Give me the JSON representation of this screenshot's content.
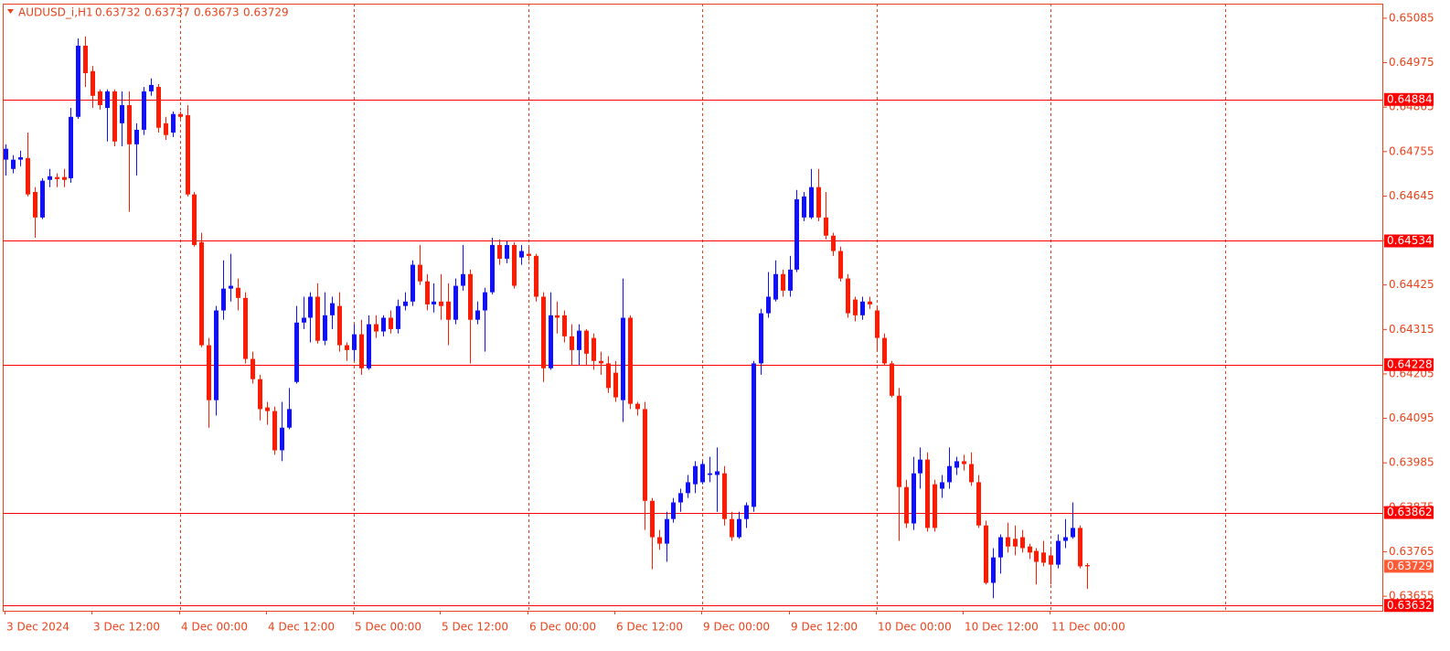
{
  "chart_data": {
    "type": "candlestick",
    "title": "AUDUSD_i,H1",
    "categories": [
      "3 Dec 2024",
      null,
      null,
      null,
      null,
      null,
      null,
      null,
      null,
      null,
      null,
      null,
      "3 Dec 12:00",
      null,
      null,
      null,
      null,
      null,
      null,
      null,
      null,
      null,
      null,
      null,
      "4 Dec 00:00",
      null,
      null,
      null,
      null,
      null,
      null,
      null,
      null,
      null,
      null,
      null,
      "4 Dec 12:00",
      null,
      null,
      null,
      null,
      null,
      null,
      null,
      null,
      null,
      null,
      null,
      "5 Dec 00:00",
      null,
      null,
      null,
      null,
      null,
      null,
      null,
      null,
      null,
      null,
      null,
      "5 Dec 12:00",
      null,
      null,
      null,
      null,
      null,
      null,
      null,
      null,
      null,
      null,
      null,
      "6 Dec 00:00",
      null,
      null,
      null,
      null,
      null,
      null,
      null,
      null,
      null,
      null,
      null,
      "6 Dec 12:00",
      null,
      null,
      null,
      null,
      null,
      null,
      null,
      null,
      null,
      null,
      null,
      "9 Dec 00:00",
      null,
      null,
      null,
      null,
      null,
      null,
      null,
      null,
      null,
      null,
      null,
      "9 Dec 12:00",
      null,
      null,
      null,
      null,
      null,
      null,
      null,
      null,
      null,
      null,
      null,
      "10 Dec 00:00",
      null,
      null,
      null,
      null,
      null,
      null,
      null,
      null,
      null,
      null,
      null,
      "10 Dec 12:00",
      null,
      null,
      null,
      null,
      null,
      null,
      null,
      null,
      null,
      null,
      null,
      "11 Dec 00:00",
      null,
      null,
      null,
      null,
      null
    ],
    "open": [
      0.64735,
      0.64712,
      0.64735,
      0.64739,
      0.64655,
      0.64592,
      0.64685,
      0.64692,
      0.64692,
      0.64689,
      0.64841,
      0.65017,
      0.64954,
      0.64904,
      0.64863,
      0.64904,
      0.64825,
      0.6487,
      0.64773,
      0.64809,
      0.64904,
      0.64915,
      0.64825,
      0.64802,
      0.64848,
      0.64845,
      0.64649,
      0.64531,
      0.64276,
      0.6414,
      0.64362,
      0.64416,
      0.64418,
      0.64393,
      0.64242,
      0.64192,
      0.64122,
      0.64113,
      0.64016,
      0.64072,
      0.64185,
      0.64332,
      0.64344,
      0.64396,
      0.64287,
      0.6435,
      0.64373,
      0.64276,
      0.64264,
      0.64303,
      0.64219,
      0.64328,
      0.6431,
      0.64344,
      0.64316,
      0.64373,
      0.64384,
      0.64475,
      0.64434,
      0.64377,
      0.64384,
      0.64384,
      0.64339,
      0.64423,
      0.64452,
      0.64339,
      0.64362,
      0.64407,
      0.64524,
      0.6449,
      0.64524,
      0.64493,
      0.64502,
      0.64497,
      0.64396,
      0.64219,
      0.6435,
      0.6435,
      0.64298,
      0.64264,
      0.64312,
      0.64294,
      0.64237,
      0.64231,
      0.64208,
      0.6414,
      0.64344,
      0.64131,
      0.64118,
      0.63891,
      0.63801,
      0.63785,
      0.63846,
      0.63887,
      0.6391,
      0.63932,
      0.63937,
      0.63955,
      0.63955,
      0.63959,
      0.63846,
      0.63801,
      0.63846,
      0.63876,
      0.64231,
      0.64355,
      0.64389,
      0.64452,
      0.64411,
      0.64463,
      0.64592,
      0.64592,
      0.64667,
      0.64592,
      0.64547,
      0.64509,
      0.64441,
      0.64389,
      0.6435,
      0.64384,
      0.64362,
      0.64294,
      0.64231,
      0.64151,
      0.63925,
      0.63835,
      0.63959,
      0.63993,
      0.63932,
      0.63921,
      0.63937,
      0.63973,
      0.63989,
      0.63982,
      0.63937,
      0.6383,
      0.63688,
      0.63751,
      0.63801,
      0.63797,
      0.63801,
      0.63778,
      0.63767,
      0.63763,
      0.63756,
      0.63733,
      0.63792,
      0.63801,
      0.63824,
      0.63732
    ],
    "high": [
      0.64773,
      0.64746,
      0.64757,
      0.64802,
      0.64667,
      0.64689,
      0.64712,
      0.64701,
      0.64712,
      0.64863,
      0.65035,
      0.6504,
      0.64967,
      0.64909,
      0.64909,
      0.64909,
      0.64904,
      0.64904,
      0.64825,
      0.64915,
      0.64936,
      0.64922,
      0.64841,
      0.64854,
      0.64854,
      0.6487,
      0.64655,
      0.64554,
      0.64294,
      0.64373,
      0.64486,
      0.64502,
      0.64441,
      0.64407,
      0.6426,
      0.64203,
      0.64136,
      0.64124,
      0.64136,
      0.6417,
      0.64373,
      0.64396,
      0.64407,
      0.64429,
      0.64407,
      0.64396,
      0.64407,
      0.64283,
      0.64328,
      0.64339,
      0.6435,
      0.6435,
      0.6435,
      0.64362,
      0.64389,
      0.64407,
      0.64486,
      0.64524,
      0.64452,
      0.64429,
      0.64452,
      0.64429,
      0.64441,
      0.64524,
      0.64463,
      0.64384,
      0.64418,
      0.64542,
      0.64538,
      0.64533,
      0.64531,
      0.64524,
      0.6452,
      0.64502,
      0.64407,
      0.64407,
      0.64384,
      0.64362,
      0.64328,
      0.64328,
      0.64316,
      0.64305,
      0.6426,
      0.64249,
      0.64237,
      0.64441,
      0.6435,
      0.64136,
      0.64136,
      0.63898,
      0.63819,
      0.63864,
      0.63898,
      0.63921,
      0.63955,
      0.63989,
      0.63989,
      0.64,
      0.64023,
      0.63977,
      0.63864,
      0.63864,
      0.63887,
      0.64237,
      0.64366,
      0.64457,
      0.64486,
      0.64463,
      0.64497,
      0.6466,
      0.64655,
      0.64712,
      0.64712,
      0.64655,
      0.64554,
      0.6452,
      0.64452,
      0.64396,
      0.64396,
      0.64396,
      0.64373,
      0.64305,
      0.64237,
      0.6417,
      0.63943,
      0.64,
      0.64023,
      0.64011,
      0.63943,
      0.63955,
      0.64023,
      0.64,
      0.64005,
      0.64011,
      0.63955,
      0.63842,
      0.63774,
      0.63808,
      0.63837,
      0.6383,
      0.63819,
      0.63785,
      0.63774,
      0.63792,
      0.63774,
      0.63808,
      0.63846,
      0.63887,
      0.6383,
      0.63737
    ],
    "low": [
      0.64696,
      0.64701,
      0.64719,
      0.64644,
      0.64542,
      0.64588,
      0.64667,
      0.64667,
      0.64667,
      0.64678,
      0.64836,
      0.64915,
      0.64863,
      0.64859,
      0.6478,
      0.64768,
      0.64768,
      0.64606,
      0.64696,
      0.64796,
      0.64893,
      0.64802,
      0.64784,
      0.64791,
      0.64836,
      0.64644,
      0.6452,
      0.64271,
      0.64072,
      0.64102,
      0.64339,
      0.64384,
      0.64362,
      0.64231,
      0.64181,
      0.6409,
      0.64079,
      0.64005,
      0.63989,
      0.64068,
      0.64181,
      0.64316,
      0.64283,
      0.6428,
      0.64276,
      0.64316,
      0.6426,
      0.64237,
      0.64237,
      0.64203,
      0.64215,
      0.64294,
      0.64298,
      0.64305,
      0.64305,
      0.64362,
      0.64373,
      0.64425,
      0.64362,
      0.64357,
      0.64339,
      0.64276,
      0.64328,
      0.64411,
      0.64231,
      0.64328,
      0.6426,
      0.64402,
      0.64475,
      0.64479,
      0.64416,
      0.64475,
      0.64486,
      0.64384,
      0.64185,
      0.64215,
      0.64305,
      0.64283,
      0.64226,
      0.64226,
      0.64226,
      0.64215,
      0.64203,
      0.64158,
      0.64136,
      0.64086,
      0.64118,
      0.64102,
      0.63819,
      0.63722,
      0.6377,
      0.6374,
      0.63837,
      0.63864,
      0.63898,
      0.6391,
      0.63932,
      0.63937,
      0.63864,
      0.6383,
      0.63792,
      0.63797,
      0.63824,
      0.63864,
      0.64203,
      0.64344,
      0.64384,
      0.64396,
      0.64396,
      0.64457,
      0.64583,
      0.64588,
      0.64583,
      0.64538,
      0.64497,
      0.64434,
      0.64344,
      0.64335,
      0.64339,
      0.64366,
      0.6426,
      0.64226,
      0.64147,
      0.63792,
      0.63824,
      0.63819,
      0.63921,
      0.63815,
      0.63815,
      0.63898,
      0.63921,
      0.63955,
      0.63966,
      0.63928,
      0.63824,
      0.63684,
      0.6365,
      0.63711,
      0.63763,
      0.63756,
      0.63763,
      0.63747,
      0.63684,
      0.63729,
      0.63684,
      0.63724,
      0.63774,
      0.63797,
      0.63724,
      0.63673
    ],
    "close": [
      0.64762,
      0.64735,
      0.64741,
      0.64649,
      0.64592,
      0.64683,
      0.64694,
      0.64687,
      0.64685,
      0.64841,
      0.65017,
      0.64949,
      0.64893,
      0.6487,
      0.64904,
      0.6478,
      0.6487,
      0.64773,
      0.64809,
      0.64904,
      0.6492,
      0.64814,
      0.64796,
      0.64848,
      0.64841,
      0.64649,
      0.64524,
      0.64276,
      0.6414,
      0.64362,
      0.64416,
      0.64423,
      0.64393,
      0.64242,
      0.64192,
      0.64118,
      0.64113,
      0.64016,
      0.64072,
      0.64118,
      0.64332,
      0.64344,
      0.64396,
      0.64287,
      0.6435,
      0.6438,
      0.64276,
      0.64264,
      0.64303,
      0.64219,
      0.64328,
      0.6431,
      0.64344,
      0.64316,
      0.64373,
      0.64384,
      0.64475,
      0.64434,
      0.64377,
      0.64384,
      0.64373,
      0.64339,
      0.64423,
      0.64452,
      0.64339,
      0.64362,
      0.64407,
      0.64524,
      0.6449,
      0.64524,
      0.64423,
      0.64509,
      0.64497,
      0.64396,
      0.64219,
      0.6435,
      0.64344,
      0.64298,
      0.64264,
      0.64312,
      0.64255,
      0.64237,
      0.64231,
      0.6417,
      0.64147,
      0.64344,
      0.64131,
      0.64118,
      0.63891,
      0.63801,
      0.63785,
      0.63846,
      0.63887,
      0.6391,
      0.63937,
      0.63977,
      0.63982,
      0.63959,
      0.63964,
      0.63846,
      0.63801,
      0.63846,
      0.6388,
      0.64231,
      0.64355,
      0.64396,
      0.64452,
      0.64411,
      0.64463,
      0.64637,
      0.64644,
      0.64667,
      0.64592,
      0.64547,
      0.64509,
      0.64441,
      0.64355,
      0.6435,
      0.64384,
      0.64377,
      0.64294,
      0.64231,
      0.64151,
      0.63925,
      0.63835,
      0.63959,
      0.63993,
      0.63824,
      0.63824,
      0.63937,
      0.63977,
      0.63989,
      0.63982,
      0.63937,
      0.6383,
      0.63688,
      0.63751,
      0.63801,
      0.63778,
      0.63778,
      0.63774,
      0.63763,
      0.6374,
      0.63738,
      0.63733,
      0.63792,
      0.63801,
      0.63824,
      0.63729,
      0.63729
    ],
    "ylim": [
      0.63619,
      0.65121
    ],
    "yticks": [
      0.65085,
      0.64975,
      0.64865,
      0.64755,
      0.64645,
      0.64535,
      0.64425,
      0.64315,
      0.64205,
      0.64095,
      0.63985,
      0.63875,
      0.63765,
      0.63655
    ],
    "levels": [
      0.64884,
      0.64534,
      0.64228,
      0.63862,
      0.63632
    ],
    "up_color": "#1010ff",
    "down_color": "#ff1a00",
    "level_color": "#ff0000",
    "price_label_color": "#ff5a36"
  }
}
